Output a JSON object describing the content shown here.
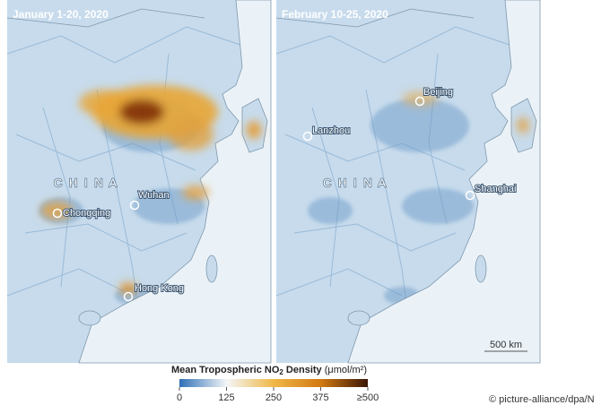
{
  "panels": [
    {
      "title": "January 1-20, 2020",
      "country_label": "C H I N A",
      "cities": [
        "Chongqing",
        "Wuhan",
        "Hong Kong"
      ]
    },
    {
      "title": "February 10-25, 2020",
      "country_label": "C H I N A",
      "cities": [
        "Lanzhou",
        "Beijing",
        "Shanghai"
      ],
      "scale_bar": "500 km"
    }
  ],
  "legend": {
    "title": "Mean Tropospheric NO",
    "subscript": "2",
    "title_end": " Density ",
    "unit": "(μmol/m²)",
    "range": [
      0,
      500
    ],
    "ticks": [
      0,
      125,
      250,
      375,
      {
        "value": 500,
        "label": "≥500"
      }
    ]
  },
  "credit": "© picture-alliance/dpa/N"
}
